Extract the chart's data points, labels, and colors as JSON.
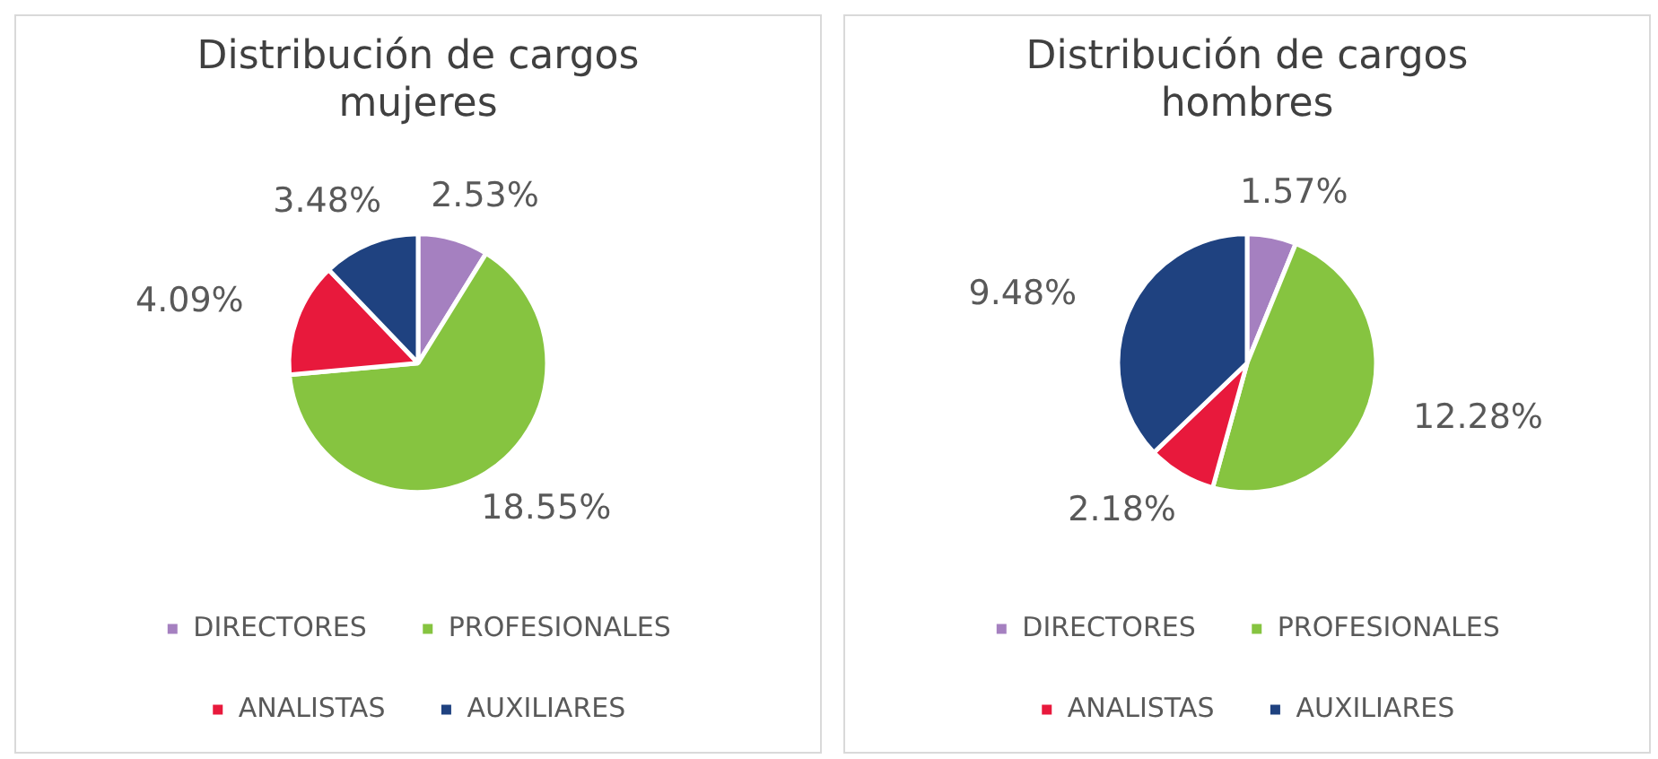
{
  "chart_data": [
    {
      "type": "pie",
      "title": "Distribución de cargos mujeres",
      "categories": [
        "DIRECTORES",
        "PROFESIONALES",
        "ANALISTAS",
        "AUXILIARES"
      ],
      "values": [
        2.53,
        18.55,
        4.09,
        3.48
      ],
      "value_labels": [
        "2.53%",
        "18.55%",
        "4.09%",
        "3.48%"
      ],
      "colors": [
        "#a580c0",
        "#86c440",
        "#e8193c",
        "#1f4280"
      ],
      "legend": "bottom"
    },
    {
      "type": "pie",
      "title": "Distribución de cargos hombres",
      "categories": [
        "DIRECTORES",
        "PROFESIONALES",
        "ANALISTAS",
        "AUXILIARES"
      ],
      "values": [
        1.57,
        12.28,
        2.18,
        9.48
      ],
      "value_labels": [
        "1.57%",
        "12.28%",
        "2.18%",
        "9.48%"
      ],
      "colors": [
        "#a580c0",
        "#86c440",
        "#e8193c",
        "#1f4280"
      ],
      "legend": "bottom"
    }
  ]
}
